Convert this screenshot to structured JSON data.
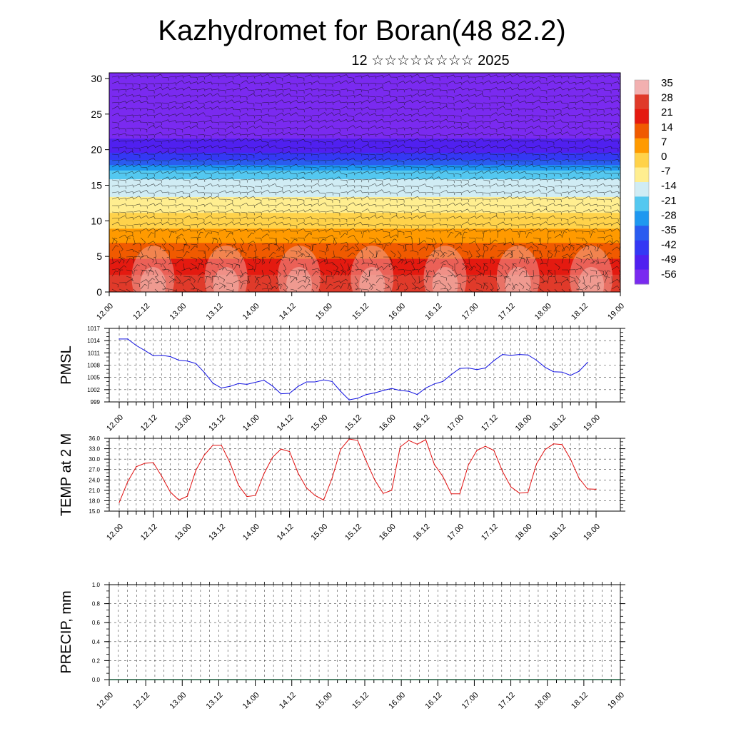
{
  "title": "Kazhydromet for Boran(48 82.2)",
  "subtitle": "12 ☆☆☆☆☆☆☆☆ 2025",
  "chart_data": [
    {
      "type": "heatmap",
      "name": "vertical-cross-section",
      "x_ticks": [
        "12.00",
        "12.12",
        "13.00",
        "13.12",
        "14.00",
        "14.12",
        "15.00",
        "15.12",
        "16.00",
        "16.12",
        "17.00",
        "17.12",
        "18.00",
        "18.12",
        "19.00"
      ],
      "y_ticks": [
        "0",
        "5",
        "10",
        "15",
        "20",
        "25",
        "30"
      ],
      "ylim": [
        0,
        30.8
      ],
      "colorbar_labels": [
        "35",
        "28",
        "21",
        "14",
        "7",
        "0",
        "-7",
        "-14",
        "-21",
        "-28",
        "-35",
        "-42",
        "-49",
        "-56"
      ],
      "colorbar_colors": [
        "#f2b0b0",
        "#e03a2a",
        "#e41a10",
        "#f05a00",
        "#ff9a00",
        "#ffd24a",
        "#ffee90",
        "#d0ecf4",
        "#54c8f0",
        "#1e98f0",
        "#2a5cf0",
        "#3438f4",
        "#5020f0",
        "#7a2af0"
      ],
      "profile": [
        {
          "h": 0,
          "t": 33
        },
        {
          "h": 3,
          "t": 27
        },
        {
          "h": 6,
          "t": 17
        },
        {
          "h": 9,
          "t": 7
        },
        {
          "h": 12,
          "t": -3
        },
        {
          "h": 15,
          "t": -11
        },
        {
          "h": 16.5,
          "t": -16
        },
        {
          "h": 18,
          "t": -30
        },
        {
          "h": 20,
          "t": -44
        },
        {
          "h": 23,
          "t": -53
        },
        {
          "h": 26,
          "t": -57
        },
        {
          "h": 29,
          "t": -55
        },
        {
          "h": 31,
          "t": -52
        }
      ]
    },
    {
      "type": "line",
      "ylabel": "PMSL",
      "x_ticks": [
        "12.00",
        "12.12",
        "13.00",
        "13.12",
        "14.00",
        "14.12",
        "15.00",
        "15.12",
        "16.00",
        "16.12",
        "17.00",
        "17.12",
        "18.00",
        "18.12",
        "19.00"
      ],
      "y_ticks": [
        "1017",
        "1014",
        "1011",
        "1008",
        "1005",
        "1002",
        "999"
      ],
      "ylim": [
        999,
        1017
      ],
      "color": "#1010e0",
      "x_step_hours": 3,
      "values": [
        1014.4,
        1014.4,
        1012.8,
        1011.6,
        1010.3,
        1010.4,
        1010.1,
        1009.2,
        1009.0,
        1008.4,
        1006.2,
        1003.6,
        1002.4,
        1002.8,
        1003.5,
        1003.3,
        1003.8,
        1004.3,
        1002.9,
        1001.0,
        1001.1,
        1002.8,
        1003.9,
        1003.9,
        1004.4,
        1004.0,
        1001.6,
        999.5,
        999.9,
        1000.8,
        1001.2,
        1001.8,
        1002.3,
        1001.8,
        1001.6,
        1000.8,
        1002.4,
        1003.4,
        1004.0,
        1005.7,
        1007.2,
        1007.3,
        1006.9,
        1007.3,
        1009.1,
        1010.6,
        1010.4,
        1010.6,
        1010.5,
        1009.2,
        1007.5,
        1006.4,
        1006.3,
        1005.5,
        1006.5,
        1008.7
      ]
    },
    {
      "type": "line",
      "ylabel": "TEMP at 2 M",
      "x_ticks": [
        "12.00",
        "12.12",
        "13.00",
        "13.12",
        "14.00",
        "14.12",
        "15.00",
        "15.12",
        "16.00",
        "16.12",
        "17.00",
        "17.12",
        "18.00",
        "18.12",
        "19.00"
      ],
      "y_ticks": [
        "36.0",
        "33.0",
        "30.0",
        "27.0",
        "24.0",
        "21.0",
        "18.0",
        "15.0"
      ],
      "ylim": [
        15,
        36
      ],
      "color": "#e01010",
      "x_step_hours": 3,
      "values": [
        17.5,
        23.5,
        27.8,
        28.8,
        29.0,
        25.0,
        20.5,
        18.2,
        19.3,
        26.8,
        31.2,
        34.0,
        34.0,
        29.0,
        22.5,
        19.2,
        19.5,
        25.8,
        30.5,
        32.9,
        32.2,
        26.0,
        21.7,
        19.5,
        18.2,
        24.5,
        32.8,
        35.8,
        35.4,
        29.5,
        24.0,
        20.1,
        21.0,
        33.5,
        35.4,
        34.3,
        35.6,
        28.5,
        25.0,
        20.0,
        20.0,
        28.3,
        32.5,
        33.7,
        32.5,
        26.5,
        22.0,
        20.2,
        20.4,
        28.6,
        32.7,
        34.4,
        34.2,
        30.0,
        24.5,
        21.4,
        21.3
      ]
    },
    {
      "type": "bar",
      "ylabel": "PRECIP, mm",
      "x_ticks": [
        "12.00",
        "12.12",
        "13.00",
        "13.12",
        "14.00",
        "14.12",
        "15.00",
        "15.12",
        "16.00",
        "16.12",
        "17.00",
        "17.12",
        "18.00",
        "18.12",
        "19.00"
      ],
      "y_ticks": [
        "1.0",
        "0.8",
        "0.6",
        "0.4",
        "0.2",
        "0.0"
      ],
      "ylim": [
        0,
        1
      ],
      "values": [
        0,
        0,
        0,
        0,
        0,
        0,
        0,
        0,
        0,
        0,
        0,
        0,
        0,
        0,
        0,
        0,
        0,
        0,
        0,
        0,
        0,
        0,
        0,
        0,
        0,
        0,
        0,
        0,
        0,
        0,
        0,
        0,
        0,
        0,
        0,
        0,
        0,
        0,
        0,
        0,
        0,
        0,
        0,
        0,
        0,
        0,
        0,
        0,
        0,
        0,
        0,
        0,
        0,
        0,
        0,
        0
      ]
    }
  ]
}
